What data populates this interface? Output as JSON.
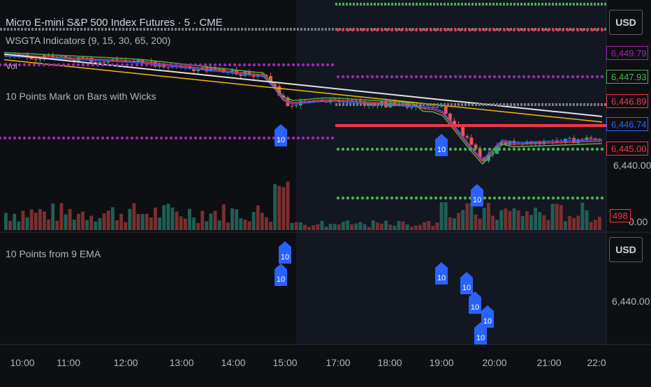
{
  "header": {
    "title": "Micro E-mini S&P 500 Index Futures · 5 · CME",
    "indicator": "WSGTA Indicators (9, 15, 30, 65, 200)",
    "vol_label": "Vol",
    "wick_indicator": "10 Points Mark on Bars with Wicks",
    "ema_indicator": "10 Points from 9 EMA"
  },
  "currency_top": "USD",
  "currency_bottom": "USD",
  "price_tags": [
    {
      "value": "6,449.79",
      "color": "#9c27b0"
    },
    {
      "value": "6,447.93",
      "color": "#4caf50"
    },
    {
      "value": "6,446.89",
      "color": "#f23645"
    },
    {
      "value": "6,446.74",
      "color": "#2962ff"
    },
    {
      "value": "6,445.00",
      "color": "#f23645"
    }
  ],
  "axis_labels": {
    "main_partial": "6,440.00",
    "volume_zero": "0.00",
    "volume_tag": "498",
    "lower_price": "6,440.00"
  },
  "marker_label": "10",
  "chart_data": {
    "type": "candlestick",
    "x_ticks": [
      "10:00",
      "11:00",
      "12:00",
      "13:00",
      "14:00",
      "15:00",
      "17:00",
      "18:00",
      "19:00",
      "20:00",
      "21:00",
      "22:0"
    ],
    "ema_series": [
      {
        "period": 9,
        "color": "#2962ff"
      },
      {
        "period": 15,
        "color": "#f23645"
      },
      {
        "period": 30,
        "color": "#4caf50"
      },
      {
        "period": 65,
        "color": "#f0b90b"
      },
      {
        "period": 200,
        "color": "#e0e0e0"
      }
    ],
    "upper_marker_times": [
      "15:00",
      "19:00",
      "19:40"
    ],
    "lower_marker_times": [
      "15:00",
      "15:00",
      "19:00",
      "19:30",
      "19:40",
      "19:55"
    ],
    "colors": {
      "up": "#26a69a",
      "down": "#ef5350",
      "marker": "#2962ff",
      "session_bg": "#131722"
    }
  }
}
